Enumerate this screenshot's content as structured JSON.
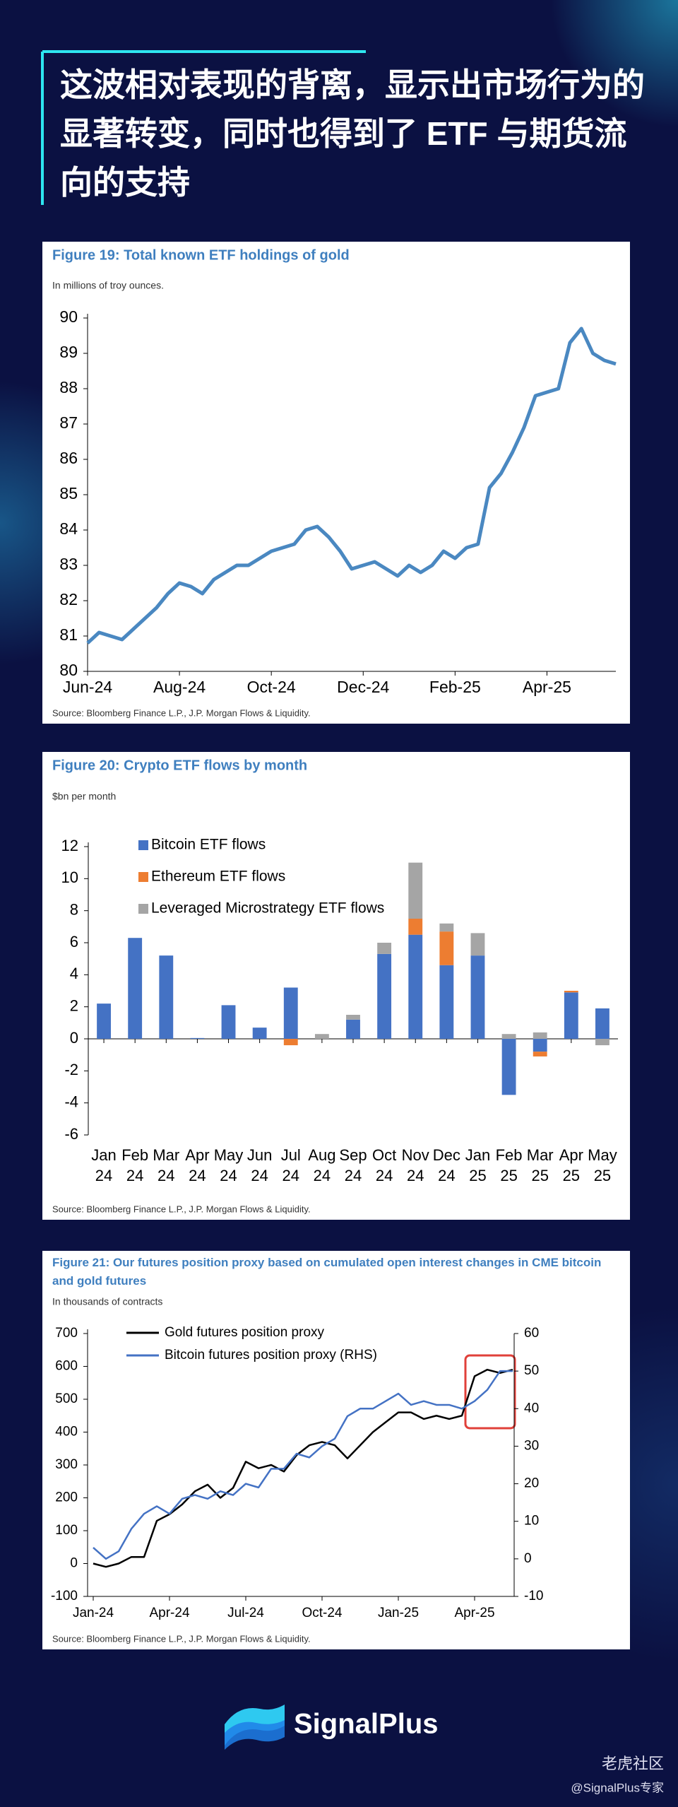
{
  "header": {
    "title": "这波相对表现的背离，显示出市场行为的显著转变，同时也得到了 ETF 与期货流向的支持"
  },
  "chart_data": [
    {
      "type": "line",
      "title": "Figure 19: Total known ETF holdings of gold",
      "subtitle": "In millions of troy ounces.",
      "source": "Source: Bloomberg Finance L.P., J.P. Morgan Flows & Liquidity.",
      "categories": [
        "Jun-24",
        null,
        null,
        null,
        null,
        null,
        null,
        null,
        "Aug-24",
        null,
        null,
        null,
        null,
        null,
        null,
        null,
        "Oct-24",
        null,
        null,
        null,
        null,
        null,
        null,
        null,
        "Dec-24",
        null,
        null,
        null,
        null,
        null,
        null,
        null,
        "Feb-25",
        null,
        null,
        null,
        null,
        null,
        null,
        null,
        "Apr-25",
        null,
        null,
        null,
        null,
        null,
        null
      ],
      "values": [
        80.8,
        81.1,
        81.0,
        80.9,
        81.2,
        81.5,
        81.8,
        82.2,
        82.5,
        82.4,
        82.2,
        82.6,
        82.8,
        83.0,
        83.0,
        83.2,
        83.4,
        83.5,
        83.6,
        84.0,
        84.1,
        83.8,
        83.4,
        82.9,
        83.0,
        83.1,
        82.9,
        82.7,
        83.0,
        82.8,
        83.0,
        83.4,
        83.2,
        83.5,
        83.6,
        85.2,
        85.6,
        86.2,
        86.9,
        87.8,
        87.9,
        88.0,
        89.3,
        89.7,
        89.0,
        88.8,
        88.7
      ],
      "color": "#4a88c1",
      "ylim": [
        80,
        90
      ],
      "yticks": [
        80,
        81,
        82,
        83,
        84,
        85,
        86,
        87,
        88,
        89,
        90
      ]
    },
    {
      "type": "bar",
      "stacked": true,
      "title": "Figure 20: Crypto ETF flows by month",
      "subtitle": "$bn per month",
      "source": "Source: Bloomberg Finance L.P., J.P. Morgan Flows & Liquidity.",
      "legend": "upper left",
      "categories": [
        "Jan 24",
        "Feb 24",
        "Mar 24",
        "Apr 24",
        "May 24",
        "Jun 24",
        "Jul 24",
        "Aug 24",
        "Sep 24",
        "Oct 24",
        "Nov 24",
        "Dec 24",
        "Jan 25",
        "Feb 25",
        "Mar 25",
        "Apr 25",
        "May 25"
      ],
      "series": [
        {
          "name": "Bitcoin ETF flows",
          "color": "#4472c4",
          "values": [
            2.2,
            6.3,
            5.2,
            0.05,
            2.1,
            0.7,
            3.2,
            0,
            1.2,
            5.3,
            6.5,
            4.6,
            5.2,
            -3.5,
            -0.8,
            2.9,
            1.9
          ]
        },
        {
          "name": "Ethereum ETF flows",
          "color": "#ed7d31",
          "values": [
            0,
            0,
            0,
            0,
            0,
            0,
            -0.4,
            0,
            0,
            0,
            1.0,
            2.1,
            0,
            0,
            -0.3,
            0.1,
            0
          ]
        },
        {
          "name": "Leveraged Microstrategy ETF flows",
          "color": "#a5a5a5",
          "values": [
            0,
            0,
            0,
            0,
            0,
            0,
            0,
            0.3,
            0.3,
            0.7,
            3.5,
            0.5,
            1.4,
            0.3,
            0.4,
            0,
            -0.4
          ]
        }
      ],
      "ylim": [
        -6,
        12
      ],
      "yticks": [
        -6,
        -4,
        -2,
        0,
        2,
        4,
        6,
        8,
        10,
        12
      ]
    },
    {
      "type": "line",
      "title": "Figure 21: Our futures position proxy based on cumulated open interest changes in CME bitcoin and gold futures",
      "subtitle": "In thousands of contracts",
      "source": "Source: Bloomberg Finance L.P., J.P. Morgan Flows & Liquidity.",
      "legend": "upper left",
      "categories": [
        "Jan-24",
        null,
        null,
        null,
        null,
        null,
        "Apr-24",
        null,
        null,
        null,
        null,
        null,
        "Jul-24",
        null,
        null,
        null,
        null,
        null,
        "Oct-24",
        null,
        null,
        null,
        null,
        null,
        "Jan-25",
        null,
        null,
        null,
        null,
        null,
        "Apr-25",
        null,
        null,
        null
      ],
      "series": [
        {
          "name": "Gold futures position proxy",
          "color": "#000000",
          "values": [
            0,
            -10,
            0,
            20,
            20,
            130,
            150,
            180,
            220,
            240,
            200,
            230,
            310,
            290,
            300,
            280,
            330,
            360,
            370,
            360,
            320,
            360,
            400,
            430,
            460,
            460,
            440,
            450,
            440,
            450,
            570,
            590,
            580,
            590
          ]
        },
        {
          "name": "Bitcoin futures position proxy (RHS)",
          "color": "#4472c4",
          "axis": "y2",
          "values": [
            3,
            0,
            2,
            8,
            12,
            14,
            12,
            16,
            17,
            16,
            18,
            17,
            20,
            19,
            24,
            24,
            28,
            27,
            30,
            32,
            38,
            40,
            40,
            42,
            44,
            41,
            42,
            41,
            41,
            40,
            42,
            45,
            50,
            50
          ]
        }
      ],
      "ylim": [
        -100,
        700
      ],
      "yticks": [
        -100,
        0,
        100,
        200,
        300,
        400,
        500,
        600,
        700
      ],
      "y2lim": [
        -10,
        60
      ],
      "y2ticks": [
        -10,
        0,
        10,
        20,
        30,
        40,
        50,
        60
      ]
    }
  ],
  "footer": {
    "brand": "SignalPlus",
    "watermark": "老虎社区",
    "handle": "@SignalPlus专家"
  }
}
